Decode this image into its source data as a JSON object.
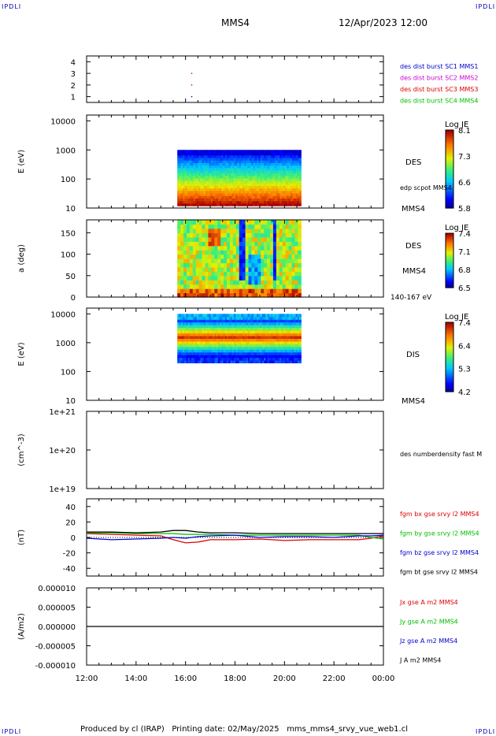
{
  "corners": {
    "tl": "IPDLI",
    "tr": "IPDLI",
    "bl": "IPDLI",
    "br": "IPDLI"
  },
  "header": {
    "spacecraft": "MMS4",
    "date": "12/Apr/2023 12:00"
  },
  "footer": {
    "text": "Produced by cl (IRAP)   Printing date: 02/May/2025   mms_mms4_srvy_vue_web1.cl"
  },
  "colors": {
    "red": "#e00000",
    "green": "#00c000",
    "blue": "#0000d0",
    "magenta": "#d000d0",
    "black": "#000000"
  },
  "chart_data": [
    {
      "type": "scatter",
      "panel": "burst",
      "ylim": [
        0.5,
        4.5
      ],
      "yticks": [
        "1",
        "2",
        "3",
        "4"
      ],
      "x": [
        "16:15",
        "16:15",
        "16:15"
      ],
      "y": [
        1,
        2,
        3
      ],
      "legend": [
        {
          "label": "des dist burst SC1 MMS1",
          "color": "#0000d0"
        },
        {
          "label": "des dist burst SC2 MMS2",
          "color": "#d000d0"
        },
        {
          "label": "des dist burst SC3 MMS3",
          "color": "#e00000"
        },
        {
          "label": "des dist burst SC4 MMS4",
          "color": "#00c000"
        }
      ]
    },
    {
      "type": "heatmap",
      "panel": "des-energy",
      "ylabel": "E (eV)",
      "yscale": "log",
      "yticks": [
        "10",
        "100",
        "1000",
        "10000"
      ],
      "xrange": [
        "15:40",
        "20:40"
      ],
      "erange": [
        12,
        1000
      ],
      "right_labels": [
        "DES",
        "edp scpot MMS4",
        "MMS4"
      ],
      "colorbar": {
        "title": "Log JE",
        "ticks": [
          "8.1",
          "7.3",
          "6.6",
          "5.8"
        ]
      }
    },
    {
      "type": "heatmap",
      "panel": "des-pitch",
      "ylabel": "a (deg)",
      "yticks": [
        "0",
        "50",
        "100",
        "150"
      ],
      "ylim": [
        0,
        180
      ],
      "xrange": [
        "15:40",
        "20:40"
      ],
      "right_labels": [
        "DES",
        "MMS4",
        "140-167 eV"
      ],
      "colorbar": {
        "title": "Log JE",
        "ticks": [
          "7.4",
          "7.1",
          "6.8",
          "6.5"
        ]
      }
    },
    {
      "type": "heatmap",
      "panel": "dis-energy",
      "ylabel": "E (eV)",
      "yscale": "log",
      "yticks": [
        "10",
        "100",
        "1000",
        "10000"
      ],
      "xrange": [
        "15:40",
        "20:40"
      ],
      "erange": [
        200,
        10000
      ],
      "right_labels": [
        "DIS",
        "MMS4"
      ],
      "colorbar": {
        "title": "Log JE",
        "ticks": [
          "7.4",
          "6.4",
          "5.3",
          "4.2"
        ]
      }
    },
    {
      "type": "line",
      "panel": "density",
      "ylabel": "(cm^-3)",
      "yscale": "log",
      "yticks": [
        "1e+19",
        "1e+20",
        "1e+21"
      ],
      "series": [
        {
          "name": "des numberdensity fast M",
          "values": []
        }
      ]
    },
    {
      "type": "line",
      "panel": "fgm",
      "ylabel": "(nT)",
      "ylim": [
        -50,
        50
      ],
      "yticks": [
        "-40",
        "-20",
        "0",
        "20",
        "40"
      ],
      "x": [
        "12:00",
        "13:00",
        "14:00",
        "15:00",
        "15:30",
        "16:00",
        "16:30",
        "17:00",
        "18:00",
        "19:00",
        "20:00",
        "21:00",
        "22:00",
        "23:00",
        "23:30",
        "00:00"
      ],
      "series": [
        {
          "name": "fgm bx gse srvy l2 MMS4",
          "color": "#e00000",
          "values": [
            5,
            4,
            3,
            2,
            -3,
            -7,
            -6,
            -3,
            -3,
            -2,
            -4,
            -3,
            -3,
            -3,
            -1,
            2
          ]
        },
        {
          "name": "fgm by gse srvy l2 MMS4",
          "color": "#00c000",
          "values": [
            6,
            6,
            5,
            5,
            5,
            4,
            4,
            4,
            3,
            3,
            3,
            3,
            3,
            3,
            0,
            -2
          ]
        },
        {
          "name": "fgm bz gse srvy l2 MMS4",
          "color": "#0000d0",
          "values": [
            -1,
            -3,
            -2,
            -1,
            0,
            -1,
            1,
            2,
            3,
            0,
            1,
            1,
            0,
            2,
            2,
            3
          ]
        },
        {
          "name": "fgm bt gse srvy l2 MMS4",
          "color": "#000000",
          "values": [
            7,
            7,
            6,
            7,
            9,
            9,
            7,
            6,
            6,
            5,
            5,
            5,
            5,
            5,
            5,
            5
          ]
        }
      ]
    },
    {
      "type": "line",
      "panel": "current",
      "ylabel": "(A/m2)",
      "ylim": [
        -1e-05,
        1e-05
      ],
      "yticks": [
        "0.000010",
        "0.000005",
        "0.000000",
        "-0.000005",
        "-0.000010"
      ],
      "series": [
        {
          "name": "Jx gse A m2 MMS4",
          "color": "#e00000",
          "values": [
            0
          ]
        },
        {
          "name": "Jy gse A m2 MMS4",
          "color": "#00c000",
          "values": [
            0
          ]
        },
        {
          "name": "Jz gse A m2 MMS4",
          "color": "#0000d0",
          "values": [
            0
          ]
        },
        {
          "name": "J A m2 MMS4",
          "color": "#000000",
          "values": [
            0
          ]
        }
      ]
    }
  ],
  "xaxis": {
    "ticks": [
      "12:00",
      "14:00",
      "16:00",
      "18:00",
      "20:00",
      "22:00",
      "00:00"
    ]
  }
}
